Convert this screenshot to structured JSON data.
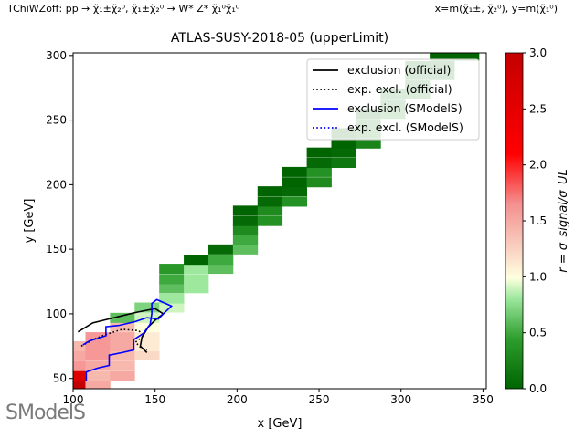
{
  "header": {
    "left": "TChiWZoff: pp → χ̃₁±χ̃₂⁰, χ̃₁±χ̃₂⁰ → W* Z* χ̃₁⁰χ̃₁⁰",
    "right": "x=m(χ̃₁±, χ̃₂⁰), y=m(χ̃₁⁰)"
  },
  "logo": "SModelS",
  "chart_data": {
    "type": "heatmap",
    "title": "ATLAS-SUSY-2018-05 (upperLimit)",
    "xlabel": "x [GeV]",
    "ylabel": "y [GeV]",
    "xlim": [
      100,
      352
    ],
    "ylim": [
      42,
      302
    ],
    "xticks": [
      100,
      150,
      200,
      250,
      300,
      350
    ],
    "yticks": [
      50,
      100,
      150,
      200,
      250,
      300
    ],
    "colorbar": {
      "label": "r = σ_signal/σ_UL",
      "range": [
        0,
        3
      ],
      "ticks": [
        0.0,
        0.5,
        1.0,
        1.5,
        2.0,
        2.5,
        3.0
      ]
    },
    "cells": [
      [
        100,
        45,
        3.0
      ],
      [
        100,
        52,
        2.6
      ],
      [
        100,
        60,
        1.6
      ],
      [
        100,
        68,
        1.5
      ],
      [
        100,
        75,
        1.4
      ],
      [
        115,
        45,
        1.5
      ],
      [
        115,
        52,
        1.4
      ],
      [
        115,
        60,
        1.5
      ],
      [
        115,
        68,
        1.6
      ],
      [
        115,
        75,
        1.6
      ],
      [
        115,
        82,
        1.6
      ],
      [
        130,
        52,
        1.5
      ],
      [
        130,
        60,
        1.4
      ],
      [
        130,
        68,
        1.4
      ],
      [
        130,
        75,
        1.5
      ],
      [
        130,
        82,
        1.5
      ],
      [
        130,
        90,
        1.4
      ],
      [
        130,
        97,
        0.6
      ],
      [
        145,
        68,
        1.2
      ],
      [
        145,
        75,
        1.1
      ],
      [
        145,
        82,
        1.1
      ],
      [
        145,
        90,
        1.0
      ],
      [
        145,
        97,
        0.9
      ],
      [
        145,
        105,
        0.7
      ],
      [
        160,
        105,
        0.9
      ],
      [
        160,
        112,
        0.8
      ],
      [
        160,
        120,
        0.6
      ],
      [
        160,
        127,
        0.5
      ],
      [
        160,
        135,
        0.4
      ],
      [
        175,
        120,
        0.8
      ],
      [
        175,
        127,
        0.8
      ],
      [
        175,
        135,
        0.8
      ],
      [
        175,
        142,
        0.0
      ],
      [
        190,
        135,
        0.6
      ],
      [
        190,
        142,
        0.5
      ],
      [
        190,
        150,
        0.05
      ],
      [
        205,
        150,
        0.6
      ],
      [
        205,
        157,
        0.5
      ],
      [
        205,
        165,
        0.3
      ],
      [
        205,
        172,
        0.05
      ],
      [
        205,
        180,
        0.0
      ],
      [
        220,
        172,
        0.35
      ],
      [
        220,
        180,
        0.3
      ],
      [
        220,
        187,
        0.05
      ],
      [
        220,
        195,
        0.0
      ],
      [
        235,
        187,
        0.35
      ],
      [
        235,
        195,
        0.05
      ],
      [
        235,
        202,
        0.0
      ],
      [
        235,
        210,
        0.0
      ],
      [
        250,
        202,
        0.3
      ],
      [
        250,
        210,
        0.35
      ],
      [
        250,
        217,
        0.05
      ],
      [
        250,
        225,
        0.0
      ],
      [
        265,
        217,
        0.15
      ],
      [
        265,
        225,
        0.05
      ],
      [
        265,
        232,
        0.0
      ],
      [
        265,
        240,
        0.0
      ],
      [
        280,
        232,
        0.25
      ],
      [
        280,
        240,
        0.25
      ],
      [
        280,
        247,
        0.2
      ],
      [
        280,
        255,
        0.05
      ],
      [
        295,
        255,
        0.25
      ],
      [
        295,
        262,
        0.2
      ],
      [
        295,
        270,
        0.2
      ],
      [
        310,
        270,
        0.25
      ],
      [
        310,
        277,
        0.15
      ],
      [
        310,
        285,
        0.15
      ],
      [
        310,
        292,
        0.1
      ],
      [
        325,
        285,
        0.1
      ],
      [
        325,
        292,
        0.05
      ],
      [
        325,
        300,
        0.0
      ],
      [
        340,
        300,
        0.0
      ]
    ],
    "series": [
      {
        "name": "exclusion (official)",
        "color": "#000000",
        "style": "solid",
        "points": [
          [
            103,
            86
          ],
          [
            112,
            93
          ],
          [
            125,
            97
          ],
          [
            138,
            101
          ],
          [
            150,
            104
          ],
          [
            155,
            100
          ],
          [
            150,
            95
          ],
          [
            146,
            90
          ],
          [
            142,
            82
          ],
          [
            141,
            75
          ],
          [
            145,
            70
          ]
        ]
      },
      {
        "name": "exp. excl. (official)",
        "color": "#000000",
        "style": "dotted",
        "points": [
          [
            105,
            75
          ],
          [
            112,
            80
          ],
          [
            120,
            84
          ],
          [
            130,
            88
          ],
          [
            140,
            87
          ],
          [
            143,
            83
          ],
          [
            138,
            78
          ],
          [
            142,
            73
          ],
          [
            145,
            72
          ]
        ]
      },
      {
        "name": "exclusion (SModelS)",
        "color": "#0000ff",
        "style": "solid",
        "points": [
          [
            108,
            48
          ],
          [
            108,
            55
          ],
          [
            115,
            58
          ],
          [
            122,
            60
          ],
          [
            122,
            68
          ],
          [
            130,
            70
          ],
          [
            137,
            72
          ],
          [
            137,
            80
          ],
          [
            143,
            85
          ],
          [
            147,
            92
          ],
          [
            148,
            100
          ],
          [
            148,
            108
          ],
          [
            151,
            111
          ],
          [
            160,
            106
          ],
          [
            155,
            100
          ],
          [
            152,
            96
          ],
          [
            145,
            97
          ],
          [
            138,
            94
          ],
          [
            128,
            91
          ],
          [
            120,
            90
          ],
          [
            120,
            83
          ],
          [
            110,
            79
          ],
          [
            106,
            76
          ]
        ]
      },
      {
        "name": "exp. excl. (SModelS)",
        "color": "#0000ff",
        "style": "dotted",
        "points": []
      }
    ]
  }
}
